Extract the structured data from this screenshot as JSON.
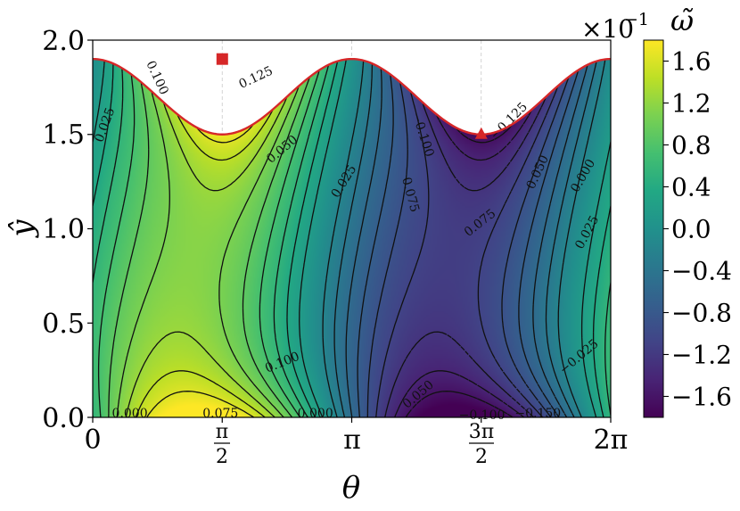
{
  "chart_data": {
    "type": "heatmap",
    "title": "",
    "xlabel": "θ",
    "ylabel": "ŷ",
    "xlim": [
      0,
      6.2832
    ],
    "ylim": [
      0,
      2.0
    ],
    "x_ticks": [
      {
        "value": 0,
        "label": "0"
      },
      {
        "value": 1.5708,
        "num": "π",
        "den": "2"
      },
      {
        "value": 3.1416,
        "label": "π"
      },
      {
        "value": 4.7124,
        "num": "3π",
        "den": "2"
      },
      {
        "value": 6.2832,
        "label": "2π"
      }
    ],
    "y_ticks": [
      {
        "value": 0.0,
        "label": "0.0"
      },
      {
        "value": 0.5,
        "label": "0.5"
      },
      {
        "value": 1.0,
        "label": "1.0"
      },
      {
        "value": 1.5,
        "label": "1.5"
      },
      {
        "value": 2.0,
        "label": "2.0"
      }
    ],
    "boundary": {
      "mean": 1.7,
      "amplitude": 0.2,
      "min_y": 1.5,
      "max_y": 1.9,
      "color": "#d62728"
    },
    "markers": [
      {
        "shape": "square",
        "x": 1.5708,
        "y": 1.9,
        "color": "#d62728"
      },
      {
        "shape": "triangle",
        "x": 4.7124,
        "y": 1.5,
        "color": "#d62728"
      }
    ],
    "colorbar": {
      "title": "ω̃",
      "multiplier_base": "×10",
      "multiplier_exp": "−1",
      "range": [
        -1.8,
        1.8
      ],
      "ticks": [
        {
          "value": 1.6,
          "label": "1.6"
        },
        {
          "value": 1.2,
          "label": "1.2"
        },
        {
          "value": 0.8,
          "label": "0.8"
        },
        {
          "value": 0.4,
          "label": "0.4"
        },
        {
          "value": 0.0,
          "label": "0.0"
        },
        {
          "value": -0.4,
          "label": "−0.4"
        },
        {
          "value": -0.8,
          "label": "−0.8"
        },
        {
          "value": -1.2,
          "label": "−1.2"
        },
        {
          "value": -1.6,
          "label": "−1.6"
        }
      ]
    },
    "contour_labels": [
      {
        "text": "0.025",
        "x": 0.15,
        "y": 1.55,
        "angle": -70
      },
      {
        "text": "0.100",
        "x": 0.78,
        "y": 1.8,
        "angle": 65
      },
      {
        "text": "0.125",
        "x": 1.98,
        "y": 1.8,
        "angle": -25
      },
      {
        "text": "0.050",
        "x": 2.3,
        "y": 1.42,
        "angle": -40
      },
      {
        "text": "0.025",
        "x": 3.05,
        "y": 1.25,
        "angle": -58
      },
      {
        "text": "−0.100",
        "x": 4.0,
        "y": 1.5,
        "angle": 72
      },
      {
        "text": "0.075",
        "x": 3.85,
        "y": 1.18,
        "angle": 75
      },
      {
        "text": "−0.125",
        "x": 5.05,
        "y": 1.57,
        "angle": -45
      },
      {
        "text": "0.050",
        "x": 5.4,
        "y": 1.3,
        "angle": -65
      },
      {
        "text": "0.000",
        "x": 5.95,
        "y": 1.28,
        "angle": -60
      },
      {
        "text": "0.075",
        "x": 4.7,
        "y": 1.03,
        "angle": -38
      },
      {
        "text": "0.025",
        "x": 6.0,
        "y": 0.98,
        "angle": -62
      },
      {
        "text": "0.100",
        "x": 2.3,
        "y": 0.29,
        "angle": -22
      },
      {
        "text": "−0.025",
        "x": 5.9,
        "y": 0.32,
        "angle": -40
      },
      {
        "text": "0.050",
        "x": 3.95,
        "y": 0.12,
        "angle": -40
      },
      {
        "text": "−0.100",
        "x": 4.72,
        "y": 0.01,
        "angle": 0
      },
      {
        "text": "−0.150",
        "x": 5.4,
        "y": 0.02,
        "angle": 0
      },
      {
        "text": "0.000",
        "x": 0.45,
        "y": 0.02,
        "angle": 0
      },
      {
        "text": "0.075",
        "x": 1.55,
        "y": 0.02,
        "angle": 0
      },
      {
        "text": "0.000",
        "x": 2.7,
        "y": 0.02,
        "angle": 0
      }
    ]
  }
}
